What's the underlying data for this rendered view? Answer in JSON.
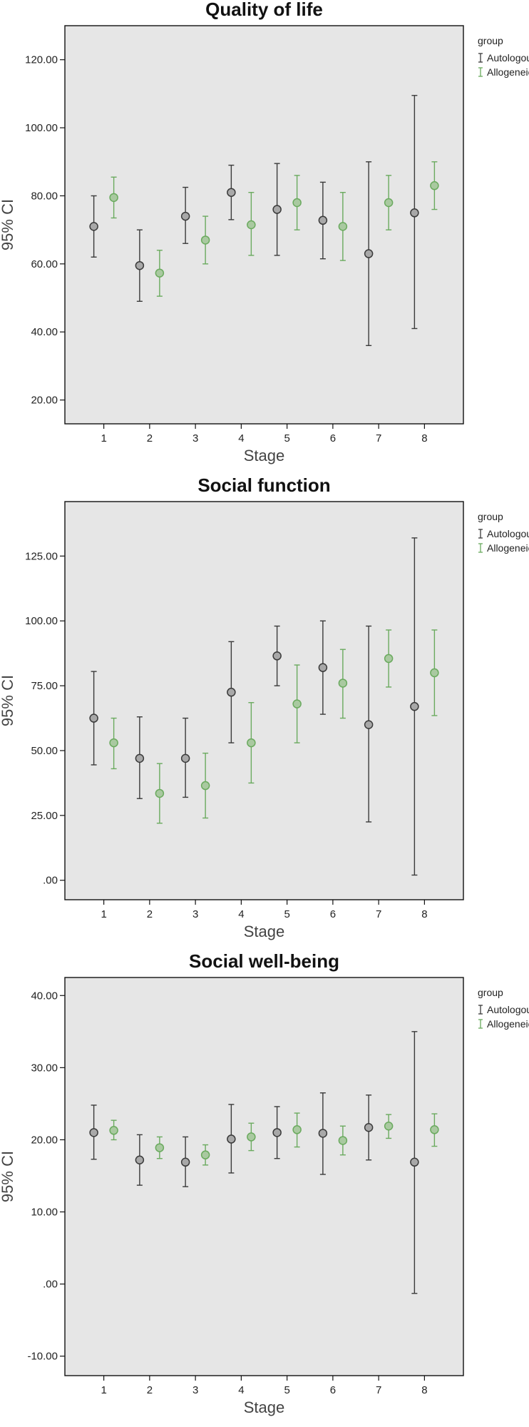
{
  "legend": {
    "title": "group",
    "entries": [
      "Autologous",
      "Allogeneic"
    ]
  },
  "colors": {
    "Autologous": "#3a3a3a",
    "Allogeneic": "#6aaa5e",
    "Autologous_fill": "#a8a8a8",
    "Allogeneic_fill": "#a9c9a0",
    "plot_bg": "#e6e6e6"
  },
  "chart_data": [
    {
      "type": "scatter",
      "title": "Quality of life",
      "xlabel": "Stage",
      "ylabel": "95% CI",
      "categories": [
        "1",
        "2",
        "3",
        "4",
        "5",
        "6",
        "7",
        "8"
      ],
      "ylim": [
        13,
        130
      ],
      "yticks": [
        20,
        40,
        60,
        80,
        100,
        120
      ],
      "ytick_labels": [
        "20.00",
        "40.00",
        "60.00",
        "80.00",
        "100.00",
        "120.00"
      ],
      "grid": false,
      "legend_position": "right",
      "series": [
        {
          "name": "Autologous",
          "mean": [
            71,
            59.5,
            74,
            81,
            76,
            72.8,
            63,
            75
          ],
          "low": [
            62,
            49,
            66,
            73,
            62.5,
            61.5,
            36,
            41
          ],
          "high": [
            80,
            70,
            82.5,
            89,
            89.5,
            84,
            90,
            109.5
          ]
        },
        {
          "name": "Allogeneic",
          "mean": [
            79.5,
            57.3,
            67,
            71.5,
            78,
            71,
            78,
            83
          ],
          "low": [
            73.5,
            50.5,
            60,
            62.5,
            70,
            61,
            70,
            76
          ],
          "high": [
            85.5,
            64,
            74,
            81,
            86,
            81,
            86,
            90
          ]
        }
      ]
    },
    {
      "type": "scatter",
      "title": "Social function",
      "xlabel": "Stage",
      "ylabel": "95% CI",
      "categories": [
        "1",
        "2",
        "3",
        "4",
        "5",
        "6",
        "7",
        "8"
      ],
      "ylim": [
        -7.5,
        146
      ],
      "yticks": [
        0,
        25,
        50,
        75,
        100,
        125
      ],
      "ytick_labels": [
        ".00",
        "25.00",
        "50.00",
        "75.00",
        "100.00",
        "125.00"
      ],
      "grid": false,
      "legend_position": "right",
      "series": [
        {
          "name": "Autologous",
          "mean": [
            62.5,
            47,
            47,
            72.5,
            86.5,
            82,
            60,
            67
          ],
          "low": [
            44.5,
            31.5,
            32,
            53,
            75,
            64,
            22.5,
            2
          ],
          "high": [
            80.5,
            63,
            62.5,
            92,
            98,
            100,
            98,
            132
          ]
        },
        {
          "name": "Allogeneic",
          "mean": [
            53,
            33.5,
            36.5,
            53,
            68,
            76,
            85.5,
            80
          ],
          "low": [
            43,
            22,
            24,
            37.5,
            53,
            62.5,
            74.5,
            63.5
          ],
          "high": [
            62.5,
            45,
            49,
            68.5,
            83,
            89,
            96.5,
            96.5
          ]
        }
      ]
    },
    {
      "type": "scatter",
      "title": "Social well-being",
      "xlabel": "Stage",
      "ylabel": "95% CI",
      "categories": [
        "1",
        "2",
        "3",
        "4",
        "5",
        "6",
        "7",
        "8"
      ],
      "ylim": [
        -12.7,
        42.5
      ],
      "yticks": [
        -10,
        0,
        10,
        20,
        30,
        40
      ],
      "ytick_labels": [
        "-10.00",
        ".00",
        "10.00",
        "20.00",
        "30.00",
        "40.00"
      ],
      "grid": false,
      "legend_position": "right",
      "series": [
        {
          "name": "Autologous",
          "mean": [
            21,
            17.2,
            16.9,
            20.1,
            21,
            20.9,
            21.7,
            16.9
          ],
          "low": [
            17.3,
            13.7,
            13.5,
            15.4,
            17.4,
            15.2,
            17.2,
            -1.3
          ],
          "high": [
            24.8,
            20.7,
            20.4,
            24.9,
            24.6,
            26.5,
            26.2,
            35
          ]
        },
        {
          "name": "Allogeneic",
          "mean": [
            21.3,
            18.9,
            17.9,
            20.4,
            21.4,
            19.9,
            21.9,
            21.4
          ],
          "low": [
            20,
            17.4,
            16.5,
            18.5,
            19,
            17.9,
            20.2,
            19.1
          ],
          "high": [
            22.7,
            20.4,
            19.3,
            22.3,
            23.7,
            21.9,
            23.5,
            23.6
          ]
        }
      ]
    }
  ]
}
